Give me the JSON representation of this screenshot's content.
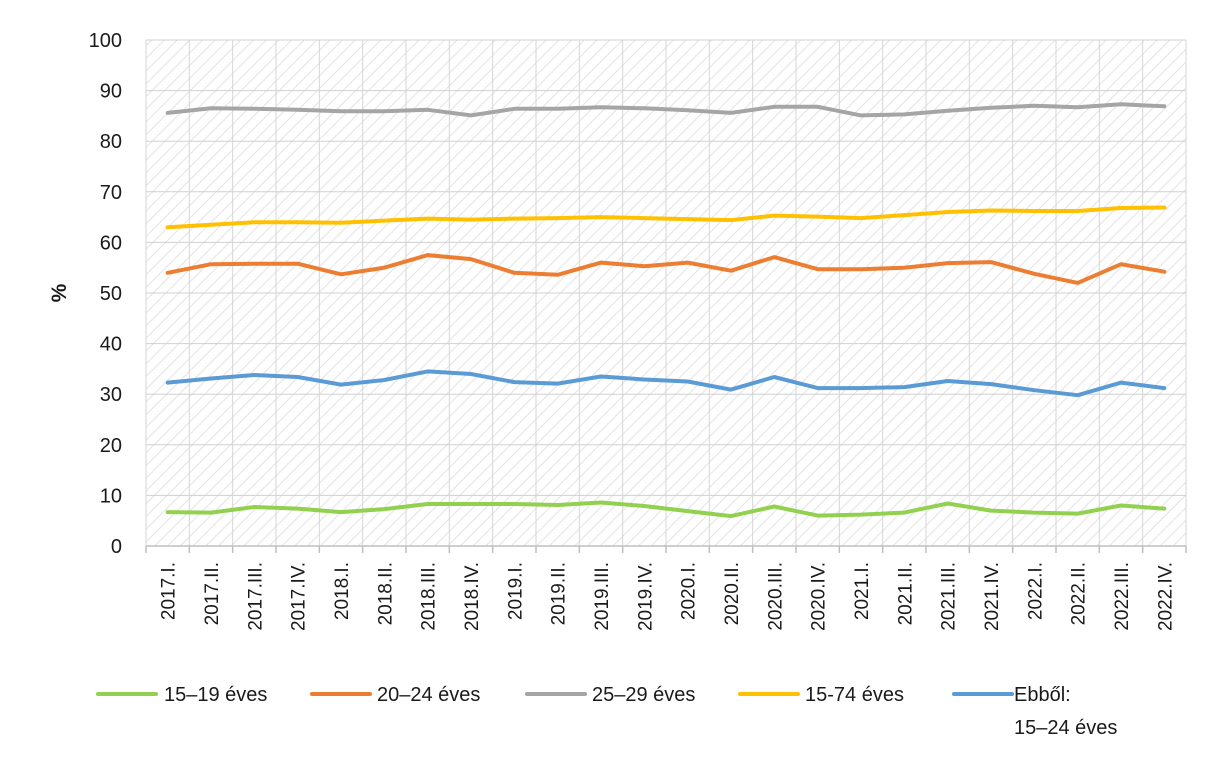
{
  "chart_data": {
    "type": "line",
    "ylabel": "%",
    "xlabel": "",
    "ylim": [
      0,
      100
    ],
    "yticks": [
      "0",
      "10",
      "20",
      "30",
      "40",
      "50",
      "60",
      "70",
      "80",
      "90",
      "100"
    ],
    "grid": true,
    "legend_position": "bottom",
    "categories": [
      "2017.I.",
      "2017.II.",
      "2017.III.",
      "2017.IV.",
      "2018.I.",
      "2018.II.",
      "2018.III.",
      "2018.IV.",
      "2019.I.",
      "2019.II.",
      "2019.III.",
      "2019.IV.",
      "2020.I.",
      "2020.II.",
      "2020.III.",
      "2020.IV.",
      "2021.I.",
      "2021.II.",
      "2021.III.",
      "2021.IV.",
      "2022.I.",
      "2022.II.",
      "2022.III.",
      "2022.IV."
    ],
    "series": [
      {
        "name": "15–19 éves",
        "color": "#92d050",
        "values": [
          6.7,
          6.6,
          7.7,
          7.4,
          6.7,
          7.3,
          8.3,
          8.3,
          8.3,
          8.1,
          8.6,
          7.9,
          6.9,
          5.9,
          7.8,
          6.0,
          6.2,
          6.6,
          8.4,
          7.0,
          6.6,
          6.4,
          8.0,
          7.4
        ]
      },
      {
        "name": "20–24 éves",
        "color": "#ed7d31",
        "values": [
          54.0,
          55.7,
          55.8,
          55.8,
          53.7,
          55.0,
          57.5,
          56.7,
          54.0,
          53.6,
          56.0,
          55.3,
          56.0,
          54.4,
          57.1,
          54.7,
          54.7,
          55.0,
          55.9,
          56.1,
          53.8,
          52.0,
          55.7,
          54.2
        ]
      },
      {
        "name": "25–29 éves",
        "color": "#a5a5a5",
        "values": [
          85.6,
          86.5,
          86.4,
          86.2,
          85.9,
          85.9,
          86.2,
          85.1,
          86.4,
          86.4,
          86.7,
          86.5,
          86.1,
          85.6,
          86.8,
          86.8,
          85.1,
          85.3,
          86.0,
          86.6,
          87.0,
          86.7,
          87.3,
          86.9
        ]
      },
      {
        "name": "15-74 éves",
        "color": "#ffc000",
        "values": [
          63.0,
          63.5,
          64.0,
          64.0,
          63.9,
          64.3,
          64.7,
          64.5,
          64.7,
          64.8,
          65.0,
          64.8,
          64.6,
          64.4,
          65.3,
          65.1,
          64.8,
          65.4,
          66.0,
          66.3,
          66.2,
          66.2,
          66.8,
          66.9
        ]
      },
      {
        "name": "Ebből: 15–24 éves",
        "color": "#5b9bd5",
        "values": [
          32.3,
          33.1,
          33.8,
          33.4,
          31.9,
          32.8,
          34.5,
          34.0,
          32.4,
          32.1,
          33.5,
          32.9,
          32.5,
          30.9,
          33.4,
          31.2,
          31.2,
          31.4,
          32.6,
          32.0,
          30.8,
          29.8,
          32.3,
          31.2
        ]
      }
    ],
    "legend": [
      {
        "lines": [
          "15–19 éves"
        ]
      },
      {
        "lines": [
          "20–24 éves"
        ]
      },
      {
        "lines": [
          "25–29 éves"
        ]
      },
      {
        "lines": [
          "15-74 éves"
        ]
      },
      {
        "lines": [
          "Ebből:",
          "15–24 éves"
        ]
      }
    ]
  }
}
